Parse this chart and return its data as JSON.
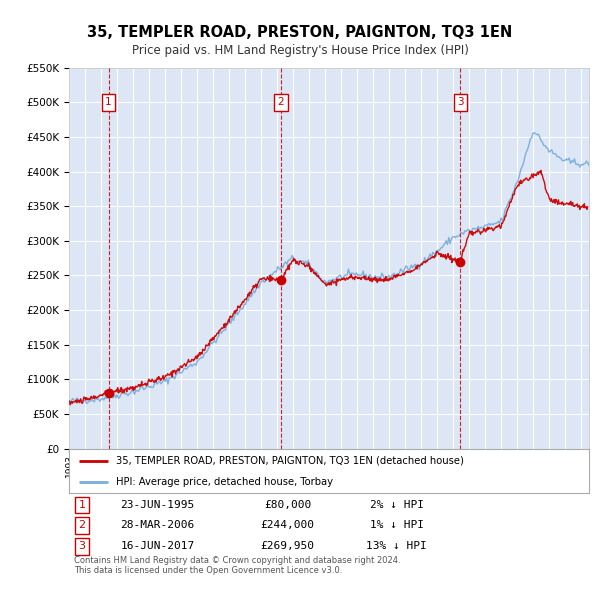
{
  "title": "35, TEMPLER ROAD, PRESTON, PAIGNTON, TQ3 1EN",
  "subtitle": "Price paid vs. HM Land Registry's House Price Index (HPI)",
  "legend_label_red": "35, TEMPLER ROAD, PRESTON, PAIGNTON, TQ3 1EN (detached house)",
  "legend_label_blue": "HPI: Average price, detached house, Torbay",
  "sale_points": [
    {
      "num": 1,
      "date_x": 1995.47,
      "price": 80000,
      "label": "23-JUN-1995",
      "price_label": "£80,000",
      "hpi_label": "2% ↓ HPI"
    },
    {
      "num": 2,
      "date_x": 2006.24,
      "price": 244000,
      "label": "28-MAR-2006",
      "price_label": "£244,000",
      "hpi_label": "1% ↓ HPI"
    },
    {
      "num": 3,
      "date_x": 2017.45,
      "price": 269950,
      "label": "16-JUN-2017",
      "price_label": "£269,950",
      "hpi_label": "13% ↓ HPI"
    }
  ],
  "copyright_text": "Contains HM Land Registry data © Crown copyright and database right 2024.\nThis data is licensed under the Open Government Licence v3.0.",
  "hpi_keypoints_x": [
    1993,
    1995,
    1997,
    1999,
    2001,
    2003,
    2005,
    2007,
    2008,
    2009,
    2010,
    2011,
    2012,
    2013,
    2014,
    2015,
    2016,
    2017,
    2018,
    2019,
    2020,
    2021,
    2022,
    2023,
    2024,
    2025.5
  ],
  "hpi_keypoints_y": [
    68000,
    72000,
    82000,
    97000,
    125000,
    180000,
    240000,
    275000,
    265000,
    240000,
    248000,
    252000,
    248000,
    248000,
    258000,
    268000,
    285000,
    305000,
    315000,
    320000,
    328000,
    385000,
    460000,
    430000,
    415000,
    410000
  ],
  "red_keypoints_x": [
    1993,
    1994,
    1995.47,
    1997,
    1999,
    2001,
    2003,
    2005,
    2006.24,
    2007,
    2008,
    2009,
    2010,
    2011,
    2012,
    2013,
    2014,
    2015,
    2016,
    2017.45,
    2018,
    2019,
    2020,
    2021,
    2022,
    2022.5,
    2023,
    2023.5,
    2024,
    2025,
    2025.5
  ],
  "red_keypoints_y": [
    66000,
    70000,
    80000,
    88000,
    103000,
    132000,
    186000,
    245000,
    244000,
    272000,
    263000,
    237000,
    244000,
    248000,
    244000,
    244000,
    254000,
    265000,
    282000,
    269950,
    310000,
    315000,
    322000,
    380000,
    395000,
    400000,
    360000,
    355000,
    355000,
    350000,
    348000
  ],
  "ylim": [
    0,
    550000
  ],
  "yticks": [
    0,
    50000,
    100000,
    150000,
    200000,
    250000,
    300000,
    350000,
    400000,
    450000,
    500000,
    550000
  ],
  "xlim_start": 1993.0,
  "xlim_end": 2025.5,
  "plot_bg_color": "#dce6f5",
  "grid_color": "#ffffff",
  "red_line_color": "#cc0000",
  "blue_line_color": "#7aaddb",
  "sale_marker_color": "#cc0000",
  "vline_color": "#cc0000",
  "box_color": "#cc0000"
}
